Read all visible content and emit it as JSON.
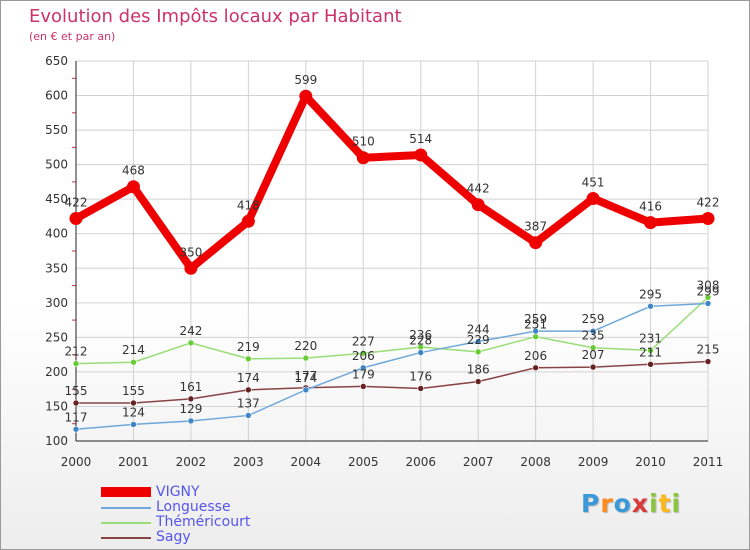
{
  "title": "Evolution des Impôts locaux par Habitant",
  "subtitle": "(en € et par an)",
  "brand": {
    "letters": [
      "P",
      "r",
      "o",
      "x",
      "i",
      "t",
      "i"
    ],
    "colors": [
      "#3a9ad9",
      "#ff8c1a",
      "#3a9ad9",
      "#d83a3a",
      "#8cc63f",
      "#ffb81c",
      "#8cc63f"
    ]
  },
  "chart_data": {
    "type": "line",
    "title": "Evolution des Impôts locaux par Habitant",
    "ylabel": "(en € et par an)",
    "xlabel": "",
    "categories": [
      "2000",
      "2001",
      "2002",
      "2003",
      "2004",
      "2005",
      "2006",
      "2007",
      "2008",
      "2009",
      "2010",
      "2011"
    ],
    "ylim": [
      100,
      650
    ],
    "yticks": [
      100,
      150,
      200,
      250,
      300,
      350,
      400,
      450,
      500,
      550,
      600,
      650
    ],
    "grid": true,
    "series": [
      {
        "name": "VIGNY",
        "color": "#ee0000",
        "point_color": "#ee0000",
        "values": [
          422,
          468,
          350,
          418,
          599,
          510,
          514,
          442,
          387,
          451,
          416,
          422
        ]
      },
      {
        "name": "Longuesse",
        "color": "#6fa8dc",
        "point_color": "#3d85c6",
        "values": [
          117,
          124,
          129,
          137,
          174,
          206,
          228,
          244,
          259,
          259,
          295,
          299
        ]
      },
      {
        "name": "Théméricourt",
        "color": "#99dd77",
        "point_color": "#66cc33",
        "values": [
          212,
          214,
          242,
          219,
          220,
          227,
          236,
          229,
          251,
          235,
          231,
          308
        ]
      },
      {
        "name": "Sagy",
        "color": "#884444",
        "point_color": "#662222",
        "values": [
          155,
          155,
          161,
          174,
          177,
          179,
          176,
          186,
          206,
          207,
          211,
          215
        ]
      }
    ]
  }
}
